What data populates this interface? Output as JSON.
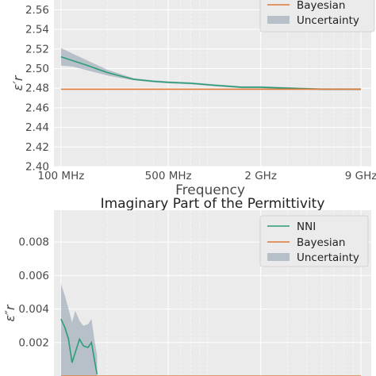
{
  "chart_data": [
    {
      "type": "line",
      "title": "",
      "xlabel": "Frequency",
      "ylabel": "ε′r",
      "x_scale": "log",
      "xlim": [
        90,
        10500
      ],
      "ylim": [
        2.4,
        2.57
      ],
      "xticks": [
        {
          "value": 100,
          "label": "100 MHz"
        },
        {
          "value": 500,
          "label": "500 MHz"
        },
        {
          "value": 2000,
          "label": "2 GHz"
        },
        {
          "value": 9000,
          "label": "9 GHz"
        }
      ],
      "yticks": [
        "2.40",
        "2.42",
        "2.44",
        "2.46",
        "2.48",
        "2.50",
        "2.52",
        "2.54",
        "2.56"
      ],
      "grid": true,
      "legend_position": "top-right",
      "legend": [
        "Bayesian",
        "Uncertainty"
      ],
      "series": [
        {
          "name": "NNI",
          "color": "#2a9d78",
          "x": [
            100,
            120,
            150,
            200,
            250,
            300,
            400,
            500,
            700,
            1000,
            1500,
            2000,
            3000,
            5000,
            7000,
            9000
          ],
          "y": [
            2.512,
            2.508,
            2.503,
            2.496,
            2.492,
            2.489,
            2.487,
            2.486,
            2.485,
            2.483,
            2.481,
            2.481,
            2.48,
            2.479,
            2.479,
            2.479
          ]
        },
        {
          "name": "Bayesian",
          "color": "#e07b39",
          "x": [
            100,
            9000
          ],
          "y": [
            2.479,
            2.479
          ]
        },
        {
          "name": "Uncertainty",
          "color": "#8c9aab",
          "x": [
            100,
            120,
            150,
            200,
            250,
            300,
            400,
            500,
            700,
            1000,
            1500,
            2000,
            3000,
            5000,
            7000,
            9000
          ],
          "lower": [
            2.503,
            2.502,
            2.498,
            2.493,
            2.49,
            2.488,
            2.486,
            2.485,
            2.484,
            2.482,
            2.48,
            2.48,
            2.479,
            2.478,
            2.478,
            2.478
          ],
          "upper": [
            2.521,
            2.515,
            2.508,
            2.499,
            2.494,
            2.49,
            2.488,
            2.487,
            2.486,
            2.484,
            2.482,
            2.482,
            2.481,
            2.48,
            2.48,
            2.48
          ]
        }
      ]
    },
    {
      "type": "line",
      "title": "Imaginary Part of the Permittivity",
      "xlabel": "",
      "ylabel": "ε″r",
      "x_scale": "log",
      "xlim": [
        90,
        10500
      ],
      "ylim": [
        0.0,
        0.0099
      ],
      "yticks": [
        "0.002",
        "0.004",
        "0.006",
        "0.008"
      ],
      "grid": true,
      "legend_position": "top-right",
      "legend": [
        "NNI",
        "Bayesian",
        "Uncertainty"
      ],
      "series": [
        {
          "name": "NNI",
          "color": "#2a9d78",
          "x": [
            100,
            106,
            112,
            118,
            124,
            132,
            140,
            150,
            158,
            165,
            172
          ],
          "y": [
            0.0034,
            0.0029,
            0.0022,
            0.0008,
            0.0014,
            0.0022,
            0.0018,
            0.0017,
            0.002,
            0.001,
            0.0001
          ]
        },
        {
          "name": "Bayesian",
          "color": "#e07b39",
          "x": [
            100,
            9000
          ],
          "y": [
            0.0,
            0.0
          ]
        },
        {
          "name": "Uncertainty",
          "color": "#8c9aab",
          "x": [
            100,
            106,
            112,
            118,
            124,
            132,
            140,
            150,
            158,
            165,
            172
          ],
          "lower": [
            0.0,
            0.0,
            0.0,
            0.0,
            0.0,
            0.0,
            0.0,
            0.0,
            0.0,
            0.0,
            0.0
          ],
          "upper": [
            0.0055,
            0.0048,
            0.004,
            0.0032,
            0.0039,
            0.0033,
            0.003,
            0.0031,
            0.0034,
            0.0022,
            0.0012
          ]
        }
      ]
    }
  ]
}
